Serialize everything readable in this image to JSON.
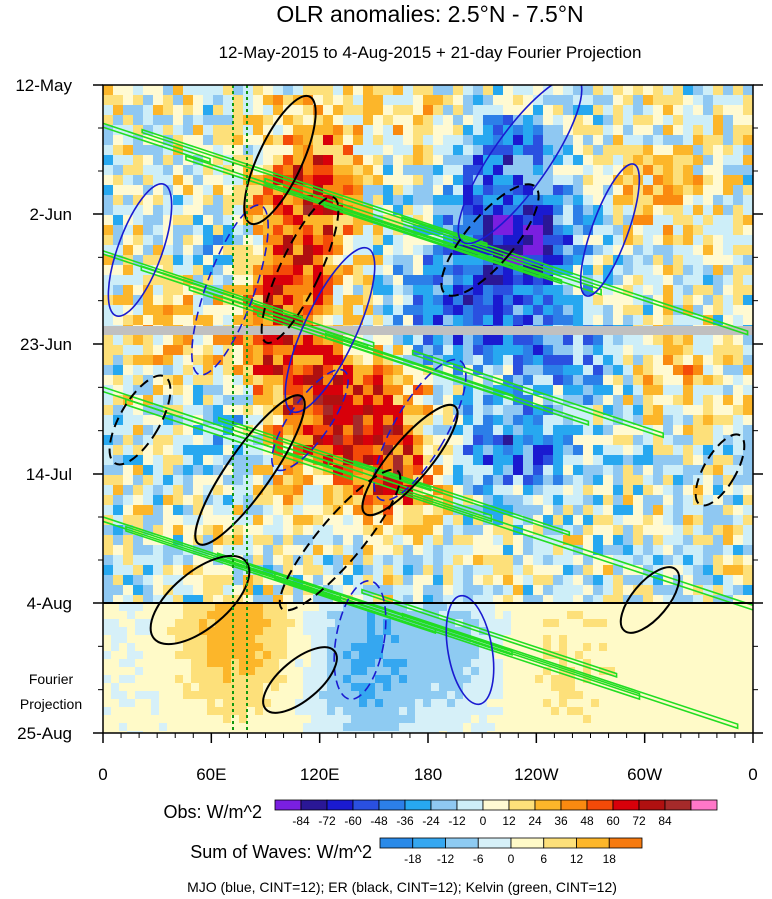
{
  "chart_data": {
    "type": "heatmap",
    "title": "OLR anomalies: 2.5°N - 7.5°N",
    "subtitle": "12-May-2015 to 4-Aug-2015 + 21-day Fourier Projection",
    "y_ticks": [
      "12-May",
      "2-Jun",
      "23-Jun",
      "14-Jul",
      "4-Aug",
      "25-Aug"
    ],
    "x_ticks": [
      "0",
      "60E",
      "120E",
      "180",
      "120W",
      "60W",
      "0"
    ],
    "projection_label": [
      "Fourier",
      "Projection"
    ],
    "obs_colorbar": {
      "label": "Obs: W/m^2",
      "ticks": [
        "-84",
        "-72",
        "-60",
        "-48",
        "-36",
        "-24",
        "-12",
        "0",
        "12",
        "24",
        "36",
        "48",
        "60",
        "72",
        "84"
      ],
      "colors": [
        "#7a1fe0",
        "#2a1796",
        "#1a1ad0",
        "#2a50e0",
        "#2c7fe8",
        "#27a8f0",
        "#8fc8f2",
        "#cdeef8",
        "#fffad2",
        "#fde07a",
        "#fcb62a",
        "#fa8a10",
        "#f44a08",
        "#d8000a",
        "#b01010",
        "#a52a2a",
        "#ff77c8"
      ]
    },
    "waves_colorbar": {
      "label": "Sum of Waves: W/m^2",
      "ticks": [
        "-18",
        "-12",
        "-6",
        "0",
        "6",
        "12",
        "18"
      ],
      "colors": [
        "#2a8ae8",
        "#35a7f0",
        "#8ecbf2",
        "#d6f0f8",
        "#fffac8",
        "#fde07a",
        "#fcb62a",
        "#f57a10"
      ]
    },
    "contours_note": "MJO (blue, CINT=12); ER (black, CINT=12); Kelvin (green, CINT=12)",
    "dataset_colors": {
      "mjo": "#1a1ad0",
      "er": "#000000",
      "kelvin": "#22dd22",
      "missing": "#c0c0c0"
    }
  }
}
